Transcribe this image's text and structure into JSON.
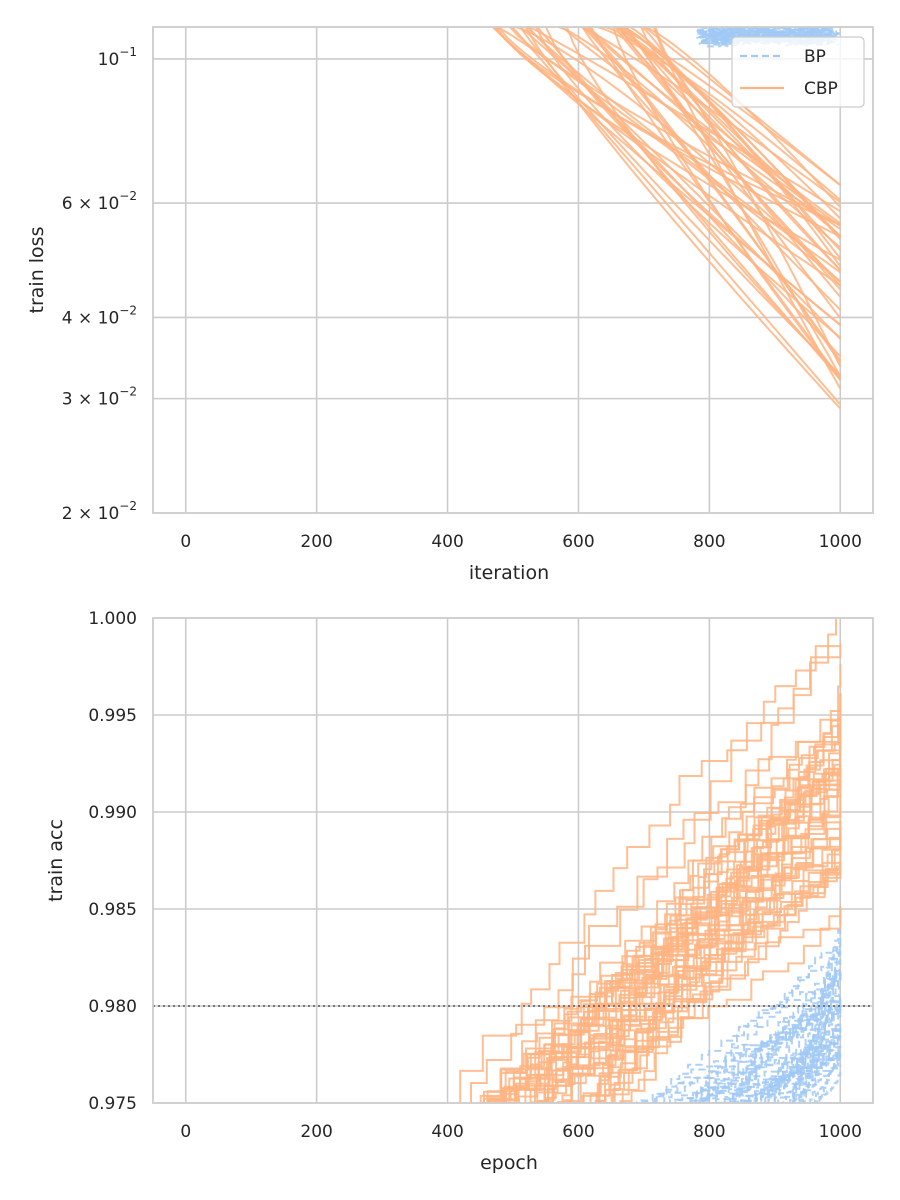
{
  "chart_data": [
    {
      "type": "line",
      "xlabel": "iteration",
      "ylabel": "train loss",
      "yscale": "log",
      "xlim": [
        -50,
        1050
      ],
      "ylim": [
        0.02,
        0.112
      ],
      "xticks": [
        0,
        200,
        400,
        600,
        800,
        1000
      ],
      "yticks": [
        0.1,
        0.06,
        0.04,
        0.03,
        0.02
      ],
      "ytick_labels": [
        {
          "base": "10",
          "exp": "−1"
        },
        {
          "base": "6 × 10",
          "exp": "−2"
        },
        {
          "base": "4 × 10",
          "exp": "−2"
        },
        {
          "base": "3 × 10",
          "exp": "−2"
        },
        {
          "base": "2 × 10",
          "exp": "−2"
        }
      ],
      "grid": true,
      "legend": {
        "location": "top-right",
        "entries": [
          "BP",
          "CBP"
        ]
      },
      "series": [
        {
          "name": "BP",
          "style": "dashed",
          "color": "#a1c9f4",
          "runs": 50,
          "summary": "all runs stay near 0.108 or above (top of axes) from about iteration 780 to 1000",
          "x_range": [
            780,
            1000
          ],
          "y_range": [
            0.106,
            0.112
          ]
        },
        {
          "name": "CBP",
          "style": "solid",
          "color": "#ffb482",
          "runs": 50,
          "summary": "runs enter the axes from the top between iteration 450 and 720 and decay to 0.028–0.064 at iteration 1000",
          "x_entry_range": [
            450,
            720
          ],
          "y_end_range": [
            0.028,
            0.064
          ]
        }
      ]
    },
    {
      "type": "line",
      "xlabel": "epoch",
      "ylabel": "train acc",
      "xlim": [
        -50,
        1050
      ],
      "ylim": [
        0.975,
        1.0
      ],
      "xticks": [
        0,
        200,
        400,
        600,
        800,
        1000
      ],
      "yticks": [
        0.975,
        0.98,
        0.985,
        0.99,
        0.995,
        1.0
      ],
      "ytick_labels": [
        "0.975",
        "0.980",
        "0.985",
        "0.990",
        "0.995",
        "1.000"
      ],
      "grid": true,
      "reference_line": {
        "y": 0.98,
        "style": "dotted",
        "color": "#555555"
      },
      "series": [
        {
          "name": "BP",
          "style": "dashed",
          "color": "#a1c9f4",
          "runs": 50,
          "summary": "step curves enter from the bottom between epoch 660 and 960 and reach 0.977–0.9835 at epoch 1000",
          "x_entry_range": [
            660,
            960
          ],
          "y_end_range": [
            0.977,
            0.9835
          ]
        },
        {
          "name": "CBP",
          "style": "solid",
          "color": "#ffb482",
          "runs": 50,
          "summary": "step curves enter from the bottom between epoch 390 and 650 and reach 0.9865–0.997 at epoch 1000",
          "x_entry_range": [
            390,
            650
          ],
          "y_end_range": [
            0.9865,
            0.997
          ]
        }
      ]
    }
  ]
}
